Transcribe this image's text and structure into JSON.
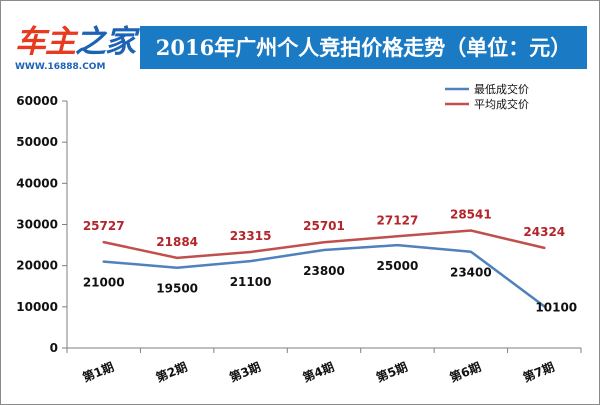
{
  "header": {
    "logo_main_a": "车主",
    "logo_main_b": "之家",
    "logo_url": "WWW.16888.COM",
    "title": "2016年广州个人竞拍价格走势（单位：元）"
  },
  "colors": {
    "title_bar": "#1a7ac4",
    "low_series": "#4f81bd",
    "avg_series": "#c0504d",
    "logo_red": "#e73a1f",
    "logo_blue": "#1d63b5"
  },
  "chart_data": {
    "type": "line",
    "title": "2016年广州个人竞拍价格走势（单位：元）",
    "categories": [
      "第1期",
      "第2期",
      "第3期",
      "第4期",
      "第5期",
      "第6期",
      "第7期"
    ],
    "yticks": [
      "0",
      "10000",
      "20000",
      "30000",
      "40000",
      "50000",
      "60000"
    ],
    "ylim": [
      0,
      60000
    ],
    "grid": false,
    "legend_position": "top-right",
    "series": [
      {
        "name": "最低成交价",
        "color": "#4f81bd",
        "values": [
          21000,
          19500,
          21100,
          23800,
          25000,
          23400,
          10100
        ],
        "labels": [
          "21000",
          "19500",
          "21100",
          "23800",
          "25000",
          "23400",
          "10100"
        ]
      },
      {
        "name": "平均成交价",
        "color": "#c0504d",
        "values": [
          25727,
          21884,
          23315,
          25701,
          27127,
          28541,
          24324
        ],
        "labels": [
          "25727",
          "21884",
          "23315",
          "25701",
          "27127",
          "28541",
          "24324"
        ]
      }
    ]
  }
}
